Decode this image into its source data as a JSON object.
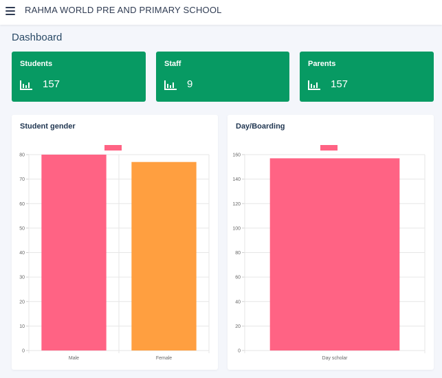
{
  "header": {
    "school_name": "RAHMA WORLD PRE AND PRIMARY SCHOOL"
  },
  "page": {
    "title": "Dashboard"
  },
  "cards": [
    {
      "label": "Students",
      "count": "157",
      "icon": "bar-chart-icon"
    },
    {
      "label": "Staff",
      "count": "9",
      "icon": "bar-chart-icon"
    },
    {
      "label": "Parents",
      "count": "157",
      "icon": "bar-chart-icon"
    }
  ],
  "colors": {
    "card_bg": "#079a63",
    "bar_pink": "#ff6384",
    "bar_orange": "#ff9f40"
  },
  "chart_data": [
    {
      "type": "bar",
      "title": "Student gender",
      "categories": [
        "Male",
        "Female"
      ],
      "values": [
        80,
        77
      ],
      "colors": [
        "#ff6384",
        "#ff9f40"
      ],
      "ylim": [
        0,
        80
      ],
      "yticks": [
        0,
        10,
        20,
        30,
        40,
        50,
        60,
        70,
        80
      ],
      "legend": "top-center",
      "grid": true
    },
    {
      "type": "bar",
      "title": "Day/Boarding",
      "categories": [
        "Day scholar"
      ],
      "values": [
        157
      ],
      "colors": [
        "#ff6384"
      ],
      "ylim": [
        0,
        160
      ],
      "yticks": [
        0,
        20,
        40,
        60,
        80,
        100,
        120,
        140,
        160
      ],
      "legend": "top-center",
      "grid": true
    }
  ]
}
